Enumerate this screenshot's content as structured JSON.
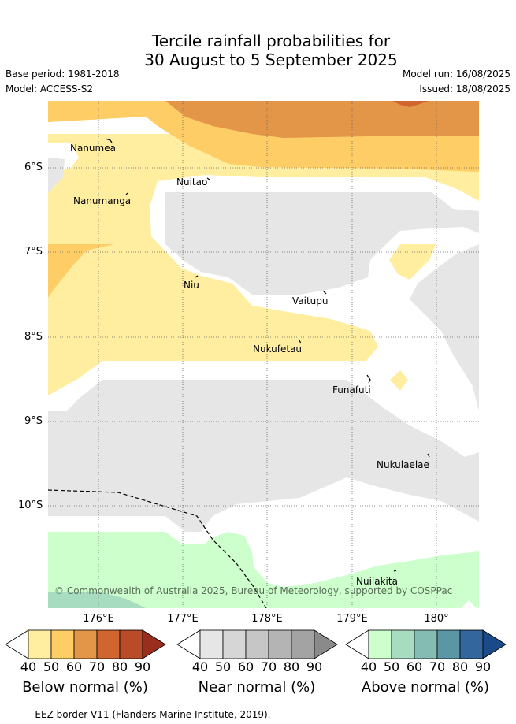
{
  "header": {
    "title_line1": "Tercile rainfall probabilities for",
    "title_line2": "30 August to 5 September 2025",
    "base_period": "Base period: 1981-2018",
    "model": "Model: ACCESS-S2",
    "model_run": "Model run: 16/08/2025",
    "issued": "Issued: 18/08/2025"
  },
  "map": {
    "lat_labels": [
      "6°S",
      "7°S",
      "8°S",
      "9°S",
      "10°S"
    ],
    "lon_labels": [
      "176°E",
      "177°E",
      "178°E",
      "179°E",
      "180°"
    ],
    "places": [
      "Nanumea",
      "Nuitao",
      "Nanumanga",
      "Niu",
      "Vaitupu",
      "Nukufetau",
      "Funafuti",
      "Nukulaelae",
      "Nuilakita"
    ],
    "copyright": "© Commonwealth of Australia 2025, Bureau of Meteorology, supported by COSPPac",
    "eez_note": "--  --  -- EEZ border V11 (Flanders Marine Institute, 2019)."
  },
  "legend": {
    "ticks": [
      "40",
      "50",
      "60",
      "70",
      "80",
      "90"
    ],
    "below": {
      "title": "Below normal (%)",
      "colors": [
        "#ffeea0",
        "#ffcd66",
        "#e39548",
        "#d06530",
        "#b84c28",
        "#9a2e1e"
      ]
    },
    "near": {
      "title": "Near normal (%)",
      "colors": [
        "#e6e6e6",
        "#d6d6d6",
        "#c6c6c6",
        "#b4b4b4",
        "#a3a3a3",
        "#8a8a8a"
      ]
    },
    "above": {
      "title": "Above normal (%)",
      "colors": [
        "#ccffcc",
        "#a8dcc0",
        "#84bcb4",
        "#5a96a4",
        "#33669c",
        "#1a4a88"
      ]
    }
  }
}
